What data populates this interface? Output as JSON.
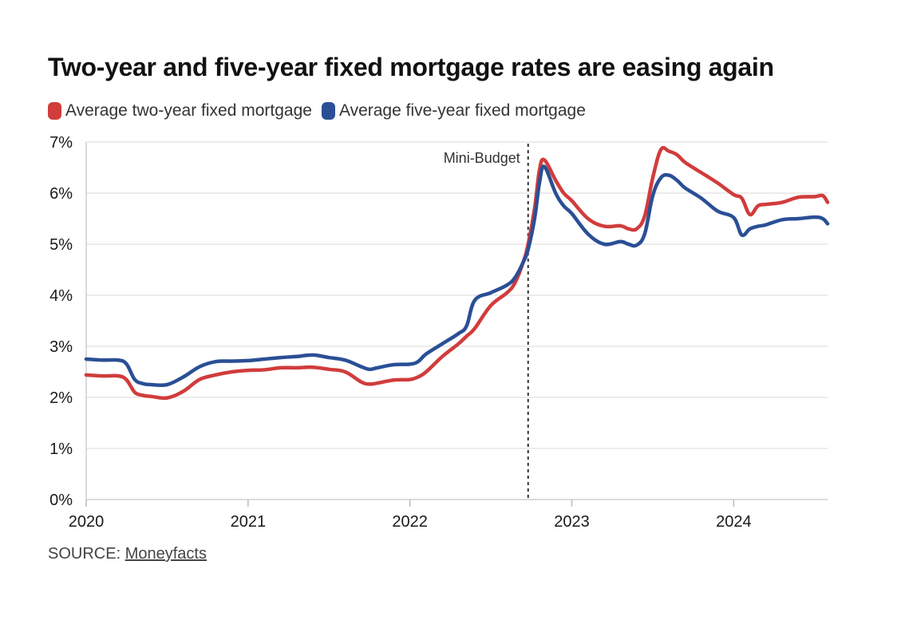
{
  "chart_data": {
    "type": "line",
    "title": "Two-year and five-year fixed mortgage rates are easing again",
    "xlabel": "",
    "ylabel": "",
    "xlim": [
      2020,
      2024.58
    ],
    "ylim": [
      0,
      7
    ],
    "x_ticks": [
      2020,
      2021,
      2022,
      2023,
      2024
    ],
    "x_tick_labels": [
      "2020",
      "2021",
      "2022",
      "2023",
      "2024"
    ],
    "y_ticks": [
      0,
      1,
      2,
      3,
      4,
      5,
      6,
      7
    ],
    "y_tick_labels": [
      "0%",
      "1%",
      "2%",
      "3%",
      "4%",
      "5%",
      "6%",
      "7%"
    ],
    "grid": true,
    "legend_position": "top-left",
    "annotations": [
      {
        "label": "Mini-Budget",
        "x": 2022.73,
        "style": "dashed-vertical-line"
      }
    ],
    "series": [
      {
        "name": "Average two-year fixed mortgage",
        "color": "#d13c3c",
        "x": [
          2020.0,
          2020.1,
          2020.2,
          2020.25,
          2020.3,
          2020.35,
          2020.4,
          2020.5,
          2020.6,
          2020.7,
          2020.8,
          2020.9,
          2021.0,
          2021.1,
          2021.2,
          2021.3,
          2021.4,
          2021.5,
          2021.6,
          2021.7,
          2021.75,
          2021.8,
          2021.9,
          2022.0,
          2022.05,
          2022.1,
          2022.2,
          2022.3,
          2022.35,
          2022.4,
          2022.5,
          2022.6,
          2022.65,
          2022.7,
          2022.73,
          2022.77,
          2022.8,
          2022.83,
          2022.9,
          2022.95,
          2023.0,
          2023.1,
          2023.2,
          2023.3,
          2023.35,
          2023.4,
          2023.45,
          2023.5,
          2023.55,
          2023.6,
          2023.65,
          2023.7,
          2023.8,
          2023.9,
          2024.0,
          2024.05,
          2024.1,
          2024.15,
          2024.2,
          2024.3,
          2024.4,
          2024.5,
          2024.55,
          2024.58
        ],
        "y": [
          2.44,
          2.42,
          2.42,
          2.34,
          2.1,
          2.04,
          2.02,
          1.99,
          2.12,
          2.35,
          2.44,
          2.5,
          2.53,
          2.54,
          2.58,
          2.58,
          2.59,
          2.55,
          2.5,
          2.3,
          2.26,
          2.28,
          2.34,
          2.35,
          2.4,
          2.5,
          2.8,
          3.05,
          3.2,
          3.35,
          3.8,
          4.05,
          4.25,
          4.65,
          5.0,
          5.7,
          6.45,
          6.65,
          6.25,
          6.0,
          5.85,
          5.5,
          5.35,
          5.36,
          5.3,
          5.3,
          5.55,
          6.3,
          6.85,
          6.82,
          6.75,
          6.6,
          6.4,
          6.2,
          5.97,
          5.9,
          5.58,
          5.75,
          5.78,
          5.82,
          5.92,
          5.93,
          5.95,
          5.82
        ]
      },
      {
        "name": "Average five-year fixed mortgage",
        "color": "#2a4f96",
        "x": [
          2020.0,
          2020.1,
          2020.2,
          2020.25,
          2020.3,
          2020.35,
          2020.4,
          2020.5,
          2020.6,
          2020.7,
          2020.8,
          2020.9,
          2021.0,
          2021.1,
          2021.2,
          2021.3,
          2021.4,
          2021.5,
          2021.6,
          2021.7,
          2021.75,
          2021.8,
          2021.9,
          2022.0,
          2022.05,
          2022.1,
          2022.2,
          2022.3,
          2022.35,
          2022.4,
          2022.5,
          2022.6,
          2022.65,
          2022.7,
          2022.73,
          2022.77,
          2022.8,
          2022.83,
          2022.9,
          2022.95,
          2023.0,
          2023.1,
          2023.2,
          2023.3,
          2023.35,
          2023.4,
          2023.45,
          2023.5,
          2023.55,
          2023.6,
          2023.65,
          2023.7,
          2023.8,
          2023.9,
          2024.0,
          2024.05,
          2024.1,
          2024.15,
          2024.2,
          2024.3,
          2024.4,
          2024.5,
          2024.55,
          2024.58
        ],
        "y": [
          2.75,
          2.73,
          2.73,
          2.65,
          2.35,
          2.27,
          2.25,
          2.25,
          2.4,
          2.6,
          2.7,
          2.71,
          2.72,
          2.75,
          2.78,
          2.8,
          2.83,
          2.78,
          2.73,
          2.6,
          2.55,
          2.58,
          2.64,
          2.65,
          2.7,
          2.85,
          3.05,
          3.25,
          3.4,
          3.9,
          4.05,
          4.2,
          4.35,
          4.65,
          4.9,
          5.5,
          6.2,
          6.52,
          6.0,
          5.75,
          5.6,
          5.2,
          5.0,
          5.05,
          5.0,
          4.98,
          5.2,
          5.95,
          6.3,
          6.35,
          6.25,
          6.1,
          5.9,
          5.65,
          5.52,
          5.18,
          5.3,
          5.35,
          5.38,
          5.48,
          5.5,
          5.53,
          5.5,
          5.4
        ]
      }
    ]
  },
  "source": {
    "prefix": "SOURCE: ",
    "link_text": "Moneyfacts"
  }
}
